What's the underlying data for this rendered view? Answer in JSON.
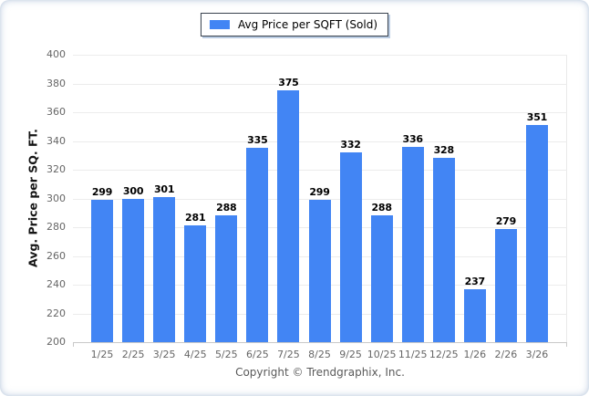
{
  "page": {
    "footer": "Copyright © Trendgraphix, Inc."
  },
  "legend": {
    "label": "Avg Price per SQFT (Sold)"
  },
  "chart_data": {
    "type": "bar",
    "title": "",
    "xlabel": "",
    "ylabel": "Avg. Price per SQ. FT.",
    "categories": [
      "1/25",
      "2/25",
      "3/25",
      "4/25",
      "5/25",
      "6/25",
      "7/25",
      "8/25",
      "9/25",
      "10/25",
      "11/25",
      "12/25",
      "1/26",
      "2/26",
      "3/26"
    ],
    "series": [
      {
        "name": "Avg Price per SQFT (Sold)",
        "values": [
          299,
          300,
          301,
          281,
          288,
          335,
          375,
          299,
          332,
          288,
          336,
          328,
          237,
          279,
          351
        ]
      }
    ],
    "ylim": [
      200,
      400
    ],
    "ytick_step": 20,
    "grid": true,
    "legend_position": "top",
    "colors": {
      "bar": "#4285f4",
      "value_label": "#000000",
      "axis_text": "#666666",
      "gridline": "#ececec",
      "baseline": "#c9c9c9",
      "legend_border": "#39424e",
      "legend_shadow": "#b9cbe2",
      "frame": "#9eb4d1"
    }
  }
}
